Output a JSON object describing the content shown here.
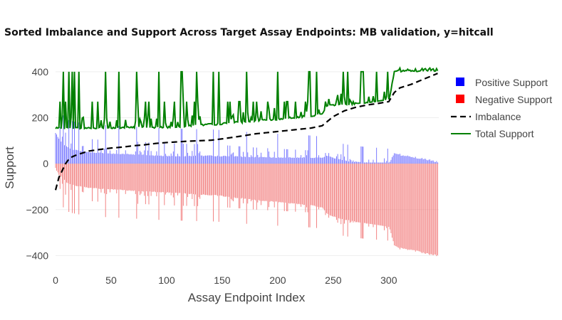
{
  "chart_data": {
    "type": "bar",
    "title": "Sorted Imbalance and Support Across Target Assay Endpoints: MB validation, y=hitcall",
    "xlabel": "Assay Endpoint Index",
    "ylabel": "Support",
    "xlim": [
      0,
      345
    ],
    "ylim": [
      -470,
      440
    ],
    "x_ticks": [
      0,
      50,
      100,
      150,
      200,
      250,
      300
    ],
    "y_ticks": [
      400,
      200,
      0,
      -200,
      -400
    ],
    "y_tick_labels": [
      "400",
      "200",
      "0",
      "−200",
      "−400"
    ],
    "grid": true,
    "legend_position": "right",
    "n_endpoints": 345,
    "series": [
      {
        "name": "Positive Support",
        "color": "#0000ff",
        "kind": "bar"
      },
      {
        "name": "Negative Support",
        "color": "#ff0000",
        "kind": "bar"
      },
      {
        "name": "Imbalance",
        "color": "#000000",
        "kind": "dashed-line"
      },
      {
        "name": "Total Support",
        "color": "#008000",
        "kind": "line"
      }
    ],
    "imbalance_anchors": [
      [
        0,
        -115
      ],
      [
        3,
        -60
      ],
      [
        6,
        -30
      ],
      [
        9,
        0
      ],
      [
        12,
        20
      ],
      [
        15,
        30
      ],
      [
        20,
        40
      ],
      [
        30,
        55
      ],
      [
        40,
        62
      ],
      [
        50,
        68
      ],
      [
        60,
        72
      ],
      [
        70,
        78
      ],
      [
        80,
        82
      ],
      [
        90,
        88
      ],
      [
        100,
        92
      ],
      [
        110,
        95
      ],
      [
        120,
        98
      ],
      [
        130,
        100
      ],
      [
        140,
        102
      ],
      [
        150,
        108
      ],
      [
        160,
        115
      ],
      [
        170,
        122
      ],
      [
        180,
        130
      ],
      [
        190,
        135
      ],
      [
        200,
        140
      ],
      [
        210,
        145
      ],
      [
        220,
        150
      ],
      [
        230,
        155
      ],
      [
        240,
        165
      ],
      [
        245,
        185
      ],
      [
        250,
        205
      ],
      [
        260,
        230
      ],
      [
        270,
        245
      ],
      [
        280,
        255
      ],
      [
        290,
        262
      ],
      [
        300,
        270
      ],
      [
        305,
        310
      ],
      [
        310,
        330
      ],
      [
        320,
        345
      ],
      [
        330,
        365
      ],
      [
        340,
        385
      ],
      [
        345,
        395
      ]
    ],
    "total_baseline_anchors": [
      [
        0,
        150
      ],
      [
        100,
        155
      ],
      [
        150,
        170
      ],
      [
        200,
        190
      ],
      [
        240,
        210
      ],
      [
        245,
        250
      ],
      [
        300,
        265
      ],
      [
        305,
        400
      ],
      [
        345,
        400
      ]
    ],
    "total_spike_value": 400,
    "total_mid_value": 270
  }
}
